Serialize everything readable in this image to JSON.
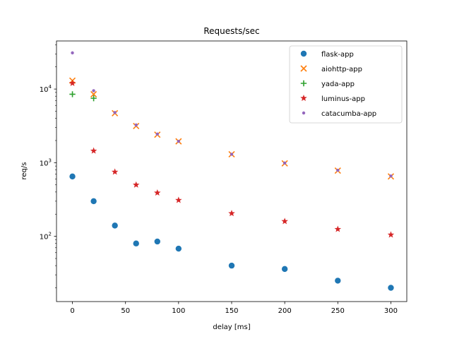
{
  "chart_data": {
    "type": "scatter",
    "title": "Requests/sec",
    "xlabel": "delay [ms]",
    "ylabel": "req/s",
    "xlim": [
      -15,
      315
    ],
    "ylim": [
      13,
      45000
    ],
    "yscale": "log",
    "xticks": [
      0,
      50,
      100,
      150,
      200,
      250,
      300
    ],
    "yticks": [
      {
        "value": 100,
        "label": "10",
        "exp": "2"
      },
      {
        "value": 1000,
        "label": "10",
        "exp": "3"
      },
      {
        "value": 10000,
        "label": "10",
        "exp": "4"
      }
    ],
    "grid": false,
    "legend_position": "top-right",
    "series": [
      {
        "name": "flask-app",
        "marker": "circle",
        "color": "#1f77b4",
        "x": [
          0,
          20,
          40,
          60,
          80,
          100,
          150,
          200,
          250,
          300
        ],
        "y": [
          650,
          300,
          140,
          80,
          85,
          68,
          40,
          36,
          25,
          20
        ]
      },
      {
        "name": "aiohttp-app",
        "marker": "x",
        "color": "#ff7f0e",
        "x": [
          0,
          20,
          40,
          60,
          80,
          100,
          150,
          200,
          250,
          300
        ],
        "y": [
          13000,
          8500,
          4700,
          3150,
          2400,
          1950,
          1300,
          980,
          780,
          650
        ]
      },
      {
        "name": "yada-app",
        "marker": "plus",
        "color": "#2ca02c",
        "x": [
          0,
          20
        ],
        "y": [
          8500,
          7500
        ]
      },
      {
        "name": "luminus-app",
        "marker": "star",
        "color": "#d62728",
        "x": [
          0,
          20,
          40,
          60,
          80,
          100,
          150,
          200,
          250,
          300
        ],
        "y": [
          12000,
          1450,
          750,
          500,
          390,
          310,
          205,
          160,
          125,
          105
        ]
      },
      {
        "name": "catacumba-app",
        "marker": "dot",
        "color": "#9467bd",
        "x": [
          0,
          20,
          40,
          60,
          80,
          100,
          150,
          200,
          250,
          300
        ],
        "y": [
          31000,
          9500,
          4800,
          3250,
          2450,
          1950,
          1300,
          990,
          790,
          660
        ]
      }
    ]
  }
}
